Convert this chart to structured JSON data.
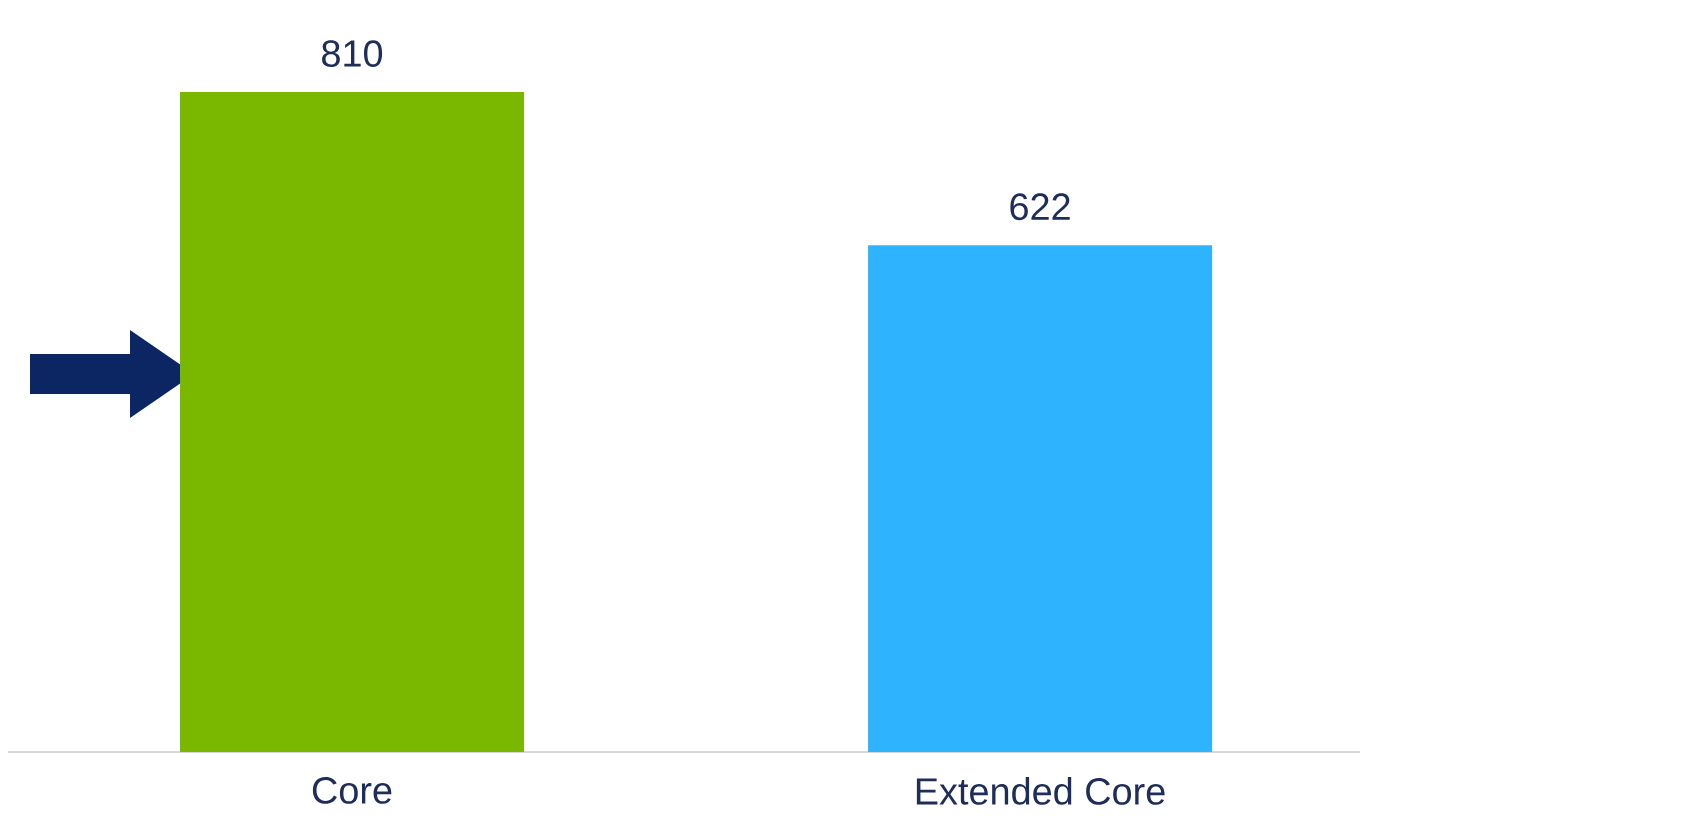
{
  "chart_data": {
    "type": "bar",
    "categories": [
      "Core",
      "Extended Core"
    ],
    "values": [
      810,
      622
    ],
    "colors": [
      "#7ab800",
      "#2eb4ff"
    ],
    "data_labels": true
  }
}
